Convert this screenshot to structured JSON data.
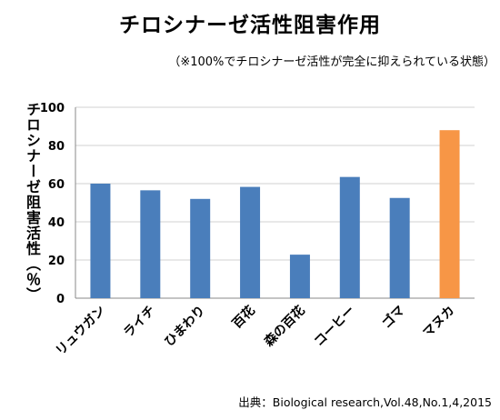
{
  "chart_data": {
    "type": "bar",
    "title": "チロシナーゼ活性阻害作用",
    "subtitle": "（※100%でチロシナーゼ活性が完全に抑えられている状態）",
    "ylabel": "チロシナーゼ阻害活性（％）",
    "xlabel": "",
    "source": "出典：Biological research,Vol.48,No.1,4,2015",
    "ylim": [
      0,
      100
    ],
    "yticks": [
      0,
      20,
      40,
      60,
      80,
      100
    ],
    "grid": true,
    "categories": [
      "リュウガン",
      "ライチ",
      "ひまわり",
      "百花",
      "森の百花",
      "コーヒー",
      "ゴマ",
      "マヌカ"
    ],
    "values": [
      60,
      56.5,
      52,
      58.3,
      22.8,
      63.5,
      52.5,
      88
    ],
    "colors": {
      "default": "#4a7ebb",
      "highlight": "#f79646",
      "grid": "#d0d0d0",
      "axis": "#888888"
    },
    "highlight_index": 7
  }
}
